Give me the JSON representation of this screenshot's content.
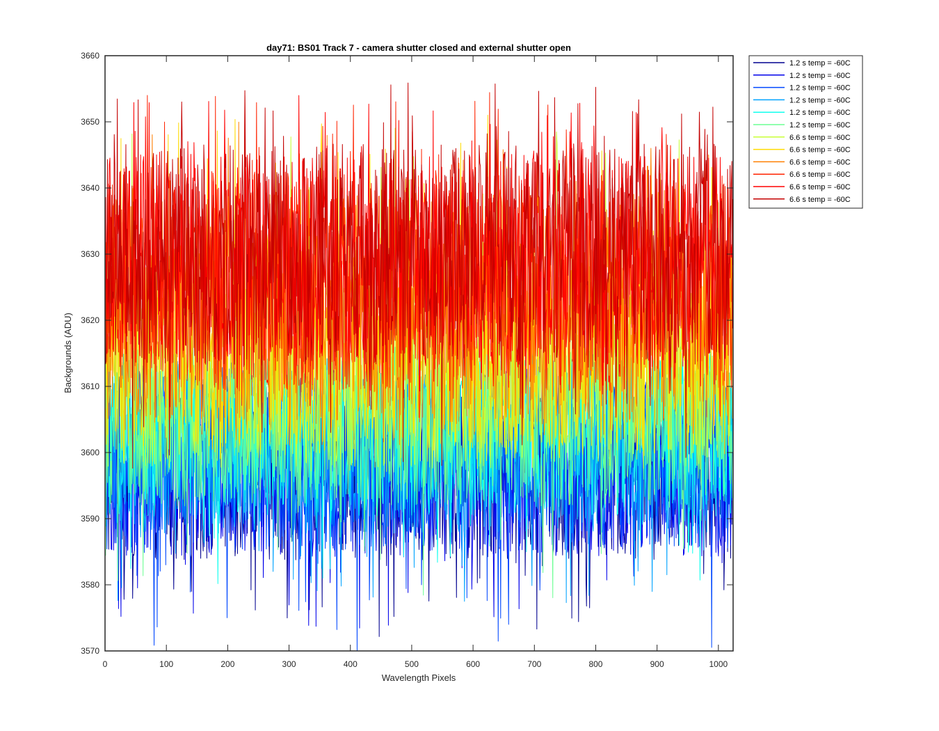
{
  "chart_data": {
    "type": "line",
    "title": "day71: BS01  Track 7 - camera shutter closed and external shutter open",
    "xlabel": "Wavelength Pixels",
    "ylabel": "Backgrounds (ADU)",
    "xlim": [
      0,
      1024
    ],
    "ylim": [
      3570,
      3660
    ],
    "xticks": [
      0,
      100,
      200,
      300,
      400,
      500,
      600,
      700,
      800,
      900,
      1000
    ],
    "yticks": [
      3570,
      3580,
      3590,
      3600,
      3610,
      3620,
      3630,
      3640,
      3650,
      3660
    ],
    "grid": false,
    "legend_position": "outside-top-right",
    "pixel_count": 1024,
    "series": [
      {
        "name": "1.2 s temp = -60C",
        "color": "#00008F",
        "mean": 3597,
        "low": 3585,
        "high": 3608,
        "min": 3572,
        "max": 3612
      },
      {
        "name": "1.2 s temp = -60C",
        "color": "#0000EA",
        "mean": 3598,
        "low": 3586,
        "high": 3610,
        "min": 3573,
        "max": 3613
      },
      {
        "name": "1.2 s temp = -60C",
        "color": "#0047FF",
        "mean": 3599,
        "low": 3587,
        "high": 3611,
        "min": 3570,
        "max": 3614
      },
      {
        "name": "1.2 s temp = -60C",
        "color": "#00A3FF",
        "mean": 3601,
        "low": 3589,
        "high": 3612,
        "min": 3577,
        "max": 3615
      },
      {
        "name": "1.2 s temp = -60C",
        "color": "#10FFEF",
        "mean": 3603,
        "low": 3591,
        "high": 3613,
        "min": 3580,
        "max": 3616
      },
      {
        "name": "1.2 s temp = -60C",
        "color": "#6CFF93",
        "mean": 3604,
        "low": 3593,
        "high": 3614,
        "min": 3577,
        "max": 3617
      },
      {
        "name": "6.6 s temp = -60C",
        "color": "#C8FF37",
        "mean": 3613,
        "low": 3601,
        "high": 3628,
        "min": 3597,
        "max": 3650
      },
      {
        "name": "6.6 s temp = -60C",
        "color": "#FFDB00",
        "mean": 3617,
        "low": 3603,
        "high": 3632,
        "min": 3599,
        "max": 3652
      },
      {
        "name": "6.6 s temp = -60C",
        "color": "#FF7F00",
        "mean": 3622,
        "low": 3606,
        "high": 3637,
        "min": 3601,
        "max": 3650
      },
      {
        "name": "6.6 s temp = -60C",
        "color": "#FF2300",
        "mean": 3626,
        "low": 3612,
        "high": 3641,
        "min": 3605,
        "max": 3657
      },
      {
        "name": "6.6 s temp = -60C",
        "color": "#FF0000",
        "mean": 3629,
        "low": 3615,
        "high": 3643,
        "min": 3608,
        "max": 3654
      },
      {
        "name": "6.6 s temp = -60C",
        "color": "#C40000",
        "mean": 3630,
        "low": 3616,
        "high": 3645,
        "min": 3597,
        "max": 3656
      }
    ]
  }
}
